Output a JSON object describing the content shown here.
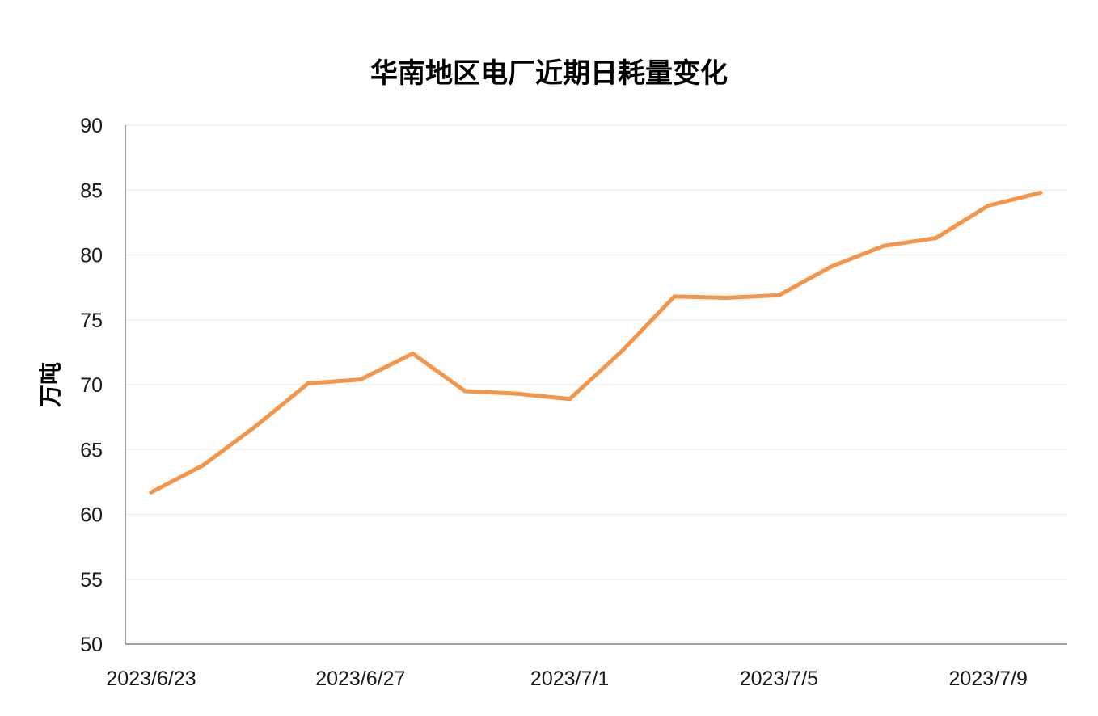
{
  "chart_data": {
    "type": "line",
    "title": "华南地区电厂近期日耗量变化",
    "ylabel": "万吨",
    "xlabel": "",
    "x": [
      "2023/6/23",
      "2023/6/24",
      "2023/6/25",
      "2023/6/26",
      "2023/6/27",
      "2023/6/28",
      "2023/6/29",
      "2023/6/30",
      "2023/7/1",
      "2023/7/2",
      "2023/7/3",
      "2023/7/4",
      "2023/7/5",
      "2023/7/6",
      "2023/7/7",
      "2023/7/8",
      "2023/7/9",
      "2023/7/10"
    ],
    "x_tick_labels": [
      "2023/6/23",
      "2023/6/27",
      "2023/7/1",
      "2023/7/5",
      "2023/7/9"
    ],
    "series": [
      {
        "values": [
          61.7,
          63.8,
          66.8,
          70.1,
          70.4,
          72.4,
          69.5,
          69.3,
          68.9,
          72.6,
          76.8,
          76.7,
          76.9,
          79.1,
          80.7,
          81.3,
          83.8,
          84.8
        ]
      }
    ],
    "ylim": [
      50,
      90
    ],
    "y_ticks": [
      50,
      55,
      60,
      65,
      70,
      75,
      80,
      85,
      90
    ],
    "grid": true,
    "line_color": "#F4954A",
    "grid_color": "#EFEEE6"
  }
}
